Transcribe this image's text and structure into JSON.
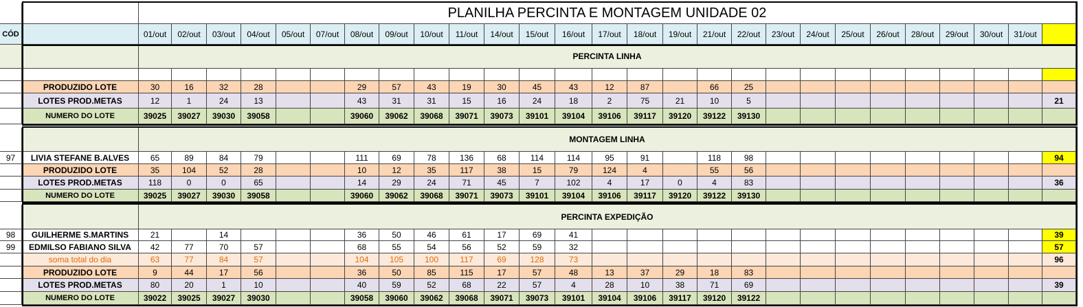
{
  "title": "PLANILHA PERCINTA E MONTAGEM UNIDADE 02",
  "header": {
    "cod": "CÓD",
    "color": "#daeef3",
    "highlight": "#ffff00",
    "dates": [
      "01/out",
      "02/out",
      "03/out",
      "04/out",
      "05/out",
      "07/out",
      "08/out",
      "09/out",
      "10/out",
      "11/out",
      "14/out",
      "15/out",
      "16/out",
      "17/out",
      "18/out",
      "19/out",
      "21/out",
      "22/out",
      "23/out",
      "24/out",
      "25/out",
      "26/out",
      "28/out",
      "29/out",
      "30/out",
      "31/out",
      null
    ]
  },
  "sections": [
    {
      "title": "PERCINTA LINHA",
      "color": "#ebf1de",
      "rows": [
        {
          "cod": null,
          "label": null,
          "color": "#ffffff",
          "highlight": "#ffff00",
          "cells": [
            null,
            null,
            null,
            null,
            null,
            null,
            null,
            null,
            null,
            null,
            null,
            null,
            null,
            null,
            null,
            null,
            null,
            null,
            null,
            null,
            null,
            null,
            null,
            null,
            null,
            null,
            null
          ]
        },
        {
          "cod": null,
          "label": "PRODUZIDO LOTE",
          "color": "#fcd5b4",
          "cells": [
            30,
            16,
            32,
            28,
            null,
            null,
            29,
            57,
            43,
            19,
            30,
            45,
            43,
            12,
            87,
            null,
            66,
            25,
            null,
            null,
            null,
            null,
            null,
            null,
            null,
            null,
            null
          ]
        },
        {
          "cod": null,
          "label": "LOTES PROD.METAS",
          "color": "#e4dfec",
          "cells": [
            12,
            1,
            24,
            13,
            null,
            null,
            43,
            31,
            31,
            15,
            16,
            24,
            18,
            2,
            75,
            21,
            10,
            5,
            null,
            null,
            null,
            null,
            null,
            null,
            null,
            null,
            21
          ]
        },
        {
          "cod": null,
          "label": "NUMERO DO LOTE",
          "color": "#d8e4bc",
          "bold": true,
          "cells": [
            39025,
            39027,
            39030,
            39058,
            null,
            null,
            39060,
            39062,
            39068,
            39071,
            39073,
            39101,
            39104,
            39106,
            39117,
            39120,
            39122,
            39130,
            null,
            null,
            null,
            null,
            null,
            null,
            null,
            null,
            null
          ]
        }
      ]
    },
    {
      "title": "MONTAGEM LINHA",
      "color": "#ebf1de",
      "rows": [
        {
          "cod": 97,
          "label": "LIVIA STEFANE B.ALVES",
          "color": "#ffffff",
          "highlight": "#ffff00",
          "cells": [
            65,
            89,
            84,
            79,
            null,
            null,
            111,
            69,
            78,
            136,
            68,
            114,
            114,
            95,
            91,
            null,
            118,
            98,
            null,
            null,
            null,
            null,
            null,
            null,
            null,
            null,
            94
          ]
        },
        {
          "cod": null,
          "label": "PRODUZIDO LOTE",
          "color": "#fcd5b4",
          "cells": [
            35,
            104,
            52,
            28,
            null,
            null,
            10,
            12,
            35,
            117,
            38,
            15,
            79,
            124,
            4,
            null,
            55,
            56,
            null,
            null,
            null,
            null,
            null,
            null,
            null,
            null,
            null
          ]
        },
        {
          "cod": null,
          "label": "LOTES PROD.METAS",
          "color": "#e4dfec",
          "cells": [
            118,
            0,
            0,
            65,
            null,
            null,
            14,
            29,
            24,
            71,
            45,
            7,
            102,
            4,
            17,
            0,
            4,
            83,
            null,
            null,
            null,
            null,
            null,
            null,
            null,
            null,
            36
          ]
        },
        {
          "cod": null,
          "label": "NUMERO DO LOTE",
          "color": "#d8e4bc",
          "bold": true,
          "cells": [
            39025,
            39027,
            39030,
            39058,
            null,
            null,
            39060,
            39062,
            39068,
            39071,
            39073,
            39101,
            39104,
            39106,
            39117,
            39120,
            39122,
            39130,
            null,
            null,
            null,
            null,
            null,
            null,
            null,
            null,
            null
          ]
        }
      ]
    },
    {
      "title": "PERCINTA EXPEDIÇÃO",
      "color": "#ebf1de",
      "rows": [
        {
          "cod": 98,
          "label": "GUILHERME S.MARTINS",
          "color": "#ffffff",
          "highlight": "#ffff00",
          "cells": [
            21,
            null,
            14,
            null,
            null,
            null,
            36,
            50,
            46,
            61,
            17,
            69,
            41,
            null,
            null,
            null,
            null,
            null,
            null,
            null,
            null,
            null,
            null,
            null,
            null,
            null,
            39
          ]
        },
        {
          "cod": 99,
          "label": "EDMILSO FABIANO SILVA",
          "color": "#ffffff",
          "highlight": "#ffff00",
          "cells": [
            42,
            77,
            70,
            57,
            null,
            null,
            68,
            55,
            54,
            56,
            52,
            59,
            32,
            null,
            null,
            null,
            null,
            null,
            null,
            null,
            null,
            null,
            null,
            null,
            null,
            null,
            57
          ]
        },
        {
          "cod": null,
          "label": "soma total  do dia",
          "color": "#fde9d9",
          "text_color": "#e26b0a",
          "cells": [
            63,
            77,
            84,
            57,
            null,
            null,
            104,
            105,
            100,
            117,
            69,
            128,
            73,
            null,
            null,
            null,
            null,
            null,
            null,
            null,
            null,
            null,
            null,
            null,
            null,
            null,
            96
          ]
        },
        {
          "cod": null,
          "label": "PRODUZIDO LOTE",
          "color": "#fcd5b4",
          "cells": [
            9,
            44,
            17,
            56,
            null,
            null,
            36,
            50,
            85,
            115,
            17,
            57,
            48,
            13,
            37,
            29,
            18,
            83,
            null,
            null,
            null,
            null,
            null,
            null,
            null,
            null,
            null
          ]
        },
        {
          "cod": null,
          "label": "LOTES PROD.METAS",
          "color": "#e4dfec",
          "cells": [
            80,
            20,
            1,
            10,
            null,
            null,
            40,
            59,
            52,
            68,
            22,
            57,
            4,
            28,
            10,
            38,
            71,
            69,
            null,
            null,
            null,
            null,
            null,
            null,
            null,
            null,
            39
          ]
        },
        {
          "cod": null,
          "label": "NUMERO DO LOTE",
          "color": "#d8e4bc",
          "bold": true,
          "cells": [
            39022,
            39025,
            39027,
            39030,
            null,
            null,
            39058,
            39060,
            39062,
            39068,
            39071,
            39073,
            39101,
            39104,
            39106,
            39117,
            39120,
            39122,
            null,
            null,
            null,
            null,
            null,
            null,
            null,
            null,
            null
          ]
        }
      ]
    }
  ]
}
